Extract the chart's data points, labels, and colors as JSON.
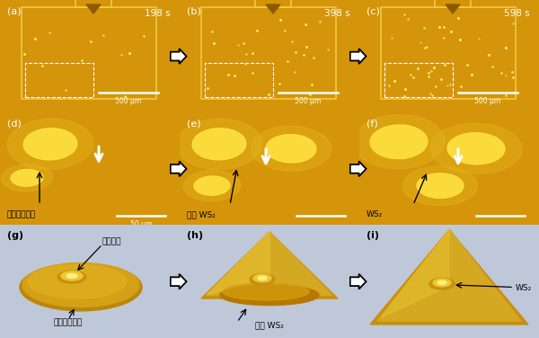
{
  "fig_width": 6.0,
  "fig_height": 3.76,
  "dpi": 100,
  "bg_gold": "#D4950A",
  "bg_schematic": "#BFC8D8",
  "gold_shape": "#D4A017",
  "gold_bright": "#F0C830",
  "gold_highlight": "#FFE060",
  "white": "#FFFFFF",
  "black": "#000000",
  "panel_label_color": "#FFFFFF",
  "schematic_label_color": "#000000",
  "time_labels": [
    "198 s",
    "398 s",
    "598 s"
  ],
  "d_label": "前驱体储液囊",
  "e_label": "初期 WS₂",
  "f_label": "WS₂",
  "g_label1": "成核中心",
  "g_label2": "前驱体储液囊",
  "h_label": "初期 WS₂",
  "i_label": "WS₂",
  "scale1": "500 μm",
  "scale2": "50 μm"
}
